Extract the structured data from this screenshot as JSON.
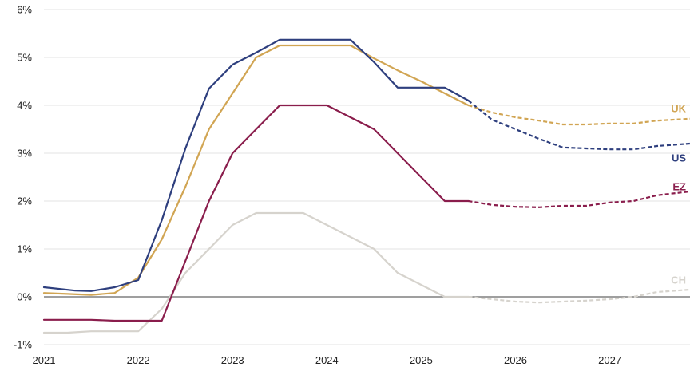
{
  "chart_data": {
    "type": "line",
    "x_ticks": [
      2021,
      2022,
      2023,
      2024,
      2025,
      2026,
      2027
    ],
    "x_tick_labels": [
      "2021",
      "2022",
      "2023",
      "2024",
      "2025",
      "2026",
      "2027"
    ],
    "y_ticks": [
      -1,
      0,
      1,
      2,
      3,
      4,
      5,
      6
    ],
    "y_tick_labels": [
      "-1%",
      "0%",
      "1%",
      "2%",
      "3%",
      "4%",
      "5%",
      "6%"
    ],
    "xlim": [
      2021,
      2027.85
    ],
    "ylim": [
      -1,
      6
    ],
    "grid": "horizontal",
    "zero_line": true,
    "series": [
      {
        "name": "US",
        "color": "#2e3f7e",
        "label_y": 2.9,
        "actual": [
          [
            2021.0,
            0.2
          ],
          [
            2021.33,
            0.13
          ],
          [
            2021.5,
            0.12
          ],
          [
            2021.75,
            0.2
          ],
          [
            2022.0,
            0.35
          ],
          [
            2022.25,
            1.6
          ],
          [
            2022.5,
            3.1
          ],
          [
            2022.75,
            4.35
          ],
          [
            2023.0,
            4.85
          ],
          [
            2023.25,
            5.1
          ],
          [
            2023.5,
            5.37
          ],
          [
            2023.75,
            5.37
          ],
          [
            2024.0,
            5.37
          ],
          [
            2024.25,
            5.37
          ],
          [
            2024.5,
            4.9
          ],
          [
            2024.75,
            4.37
          ],
          [
            2025.0,
            4.37
          ],
          [
            2025.25,
            4.37
          ],
          [
            2025.5,
            4.1
          ]
        ],
        "forecast": [
          [
            2025.5,
            4.1
          ],
          [
            2025.75,
            3.7
          ],
          [
            2026.0,
            3.5
          ],
          [
            2026.25,
            3.3
          ],
          [
            2026.5,
            3.12
          ],
          [
            2026.75,
            3.1
          ],
          [
            2027.0,
            3.08
          ],
          [
            2027.25,
            3.08
          ],
          [
            2027.5,
            3.15
          ],
          [
            2027.85,
            3.2
          ]
        ]
      },
      {
        "name": "UK",
        "color": "#d1a553",
        "label_y": 3.93,
        "actual": [
          [
            2021.0,
            0.08
          ],
          [
            2021.25,
            0.06
          ],
          [
            2021.5,
            0.04
          ],
          [
            2021.75,
            0.08
          ],
          [
            2022.0,
            0.4
          ],
          [
            2022.25,
            1.2
          ],
          [
            2022.5,
            2.3
          ],
          [
            2022.75,
            3.5
          ],
          [
            2023.0,
            4.25
          ],
          [
            2023.25,
            5.0
          ],
          [
            2023.5,
            5.25
          ],
          [
            2023.75,
            5.25
          ],
          [
            2024.0,
            5.25
          ],
          [
            2024.25,
            5.25
          ],
          [
            2024.5,
            4.98
          ],
          [
            2024.75,
            4.73
          ],
          [
            2025.0,
            4.5
          ],
          [
            2025.25,
            4.25
          ],
          [
            2025.5,
            4.0
          ]
        ],
        "forecast": [
          [
            2025.5,
            4.0
          ],
          [
            2025.75,
            3.85
          ],
          [
            2026.0,
            3.75
          ],
          [
            2026.25,
            3.68
          ],
          [
            2026.5,
            3.6
          ],
          [
            2026.75,
            3.6
          ],
          [
            2027.0,
            3.62
          ],
          [
            2027.25,
            3.62
          ],
          [
            2027.5,
            3.68
          ],
          [
            2027.85,
            3.72
          ]
        ]
      },
      {
        "name": "EZ",
        "color": "#8a1d4c",
        "label_y": 2.3,
        "actual": [
          [
            2021.0,
            -0.48
          ],
          [
            2021.5,
            -0.48
          ],
          [
            2021.75,
            -0.5
          ],
          [
            2022.0,
            -0.5
          ],
          [
            2022.25,
            -0.5
          ],
          [
            2022.5,
            0.75
          ],
          [
            2022.75,
            2.0
          ],
          [
            2023.0,
            3.0
          ],
          [
            2023.25,
            3.5
          ],
          [
            2023.5,
            4.0
          ],
          [
            2023.75,
            4.0
          ],
          [
            2024.0,
            4.0
          ],
          [
            2024.25,
            3.75
          ],
          [
            2024.5,
            3.5
          ],
          [
            2024.75,
            3.0
          ],
          [
            2025.0,
            2.5
          ],
          [
            2025.25,
            2.0
          ],
          [
            2025.5,
            2.0
          ]
        ],
        "forecast": [
          [
            2025.5,
            2.0
          ],
          [
            2025.75,
            1.92
          ],
          [
            2026.0,
            1.88
          ],
          [
            2026.25,
            1.87
          ],
          [
            2026.5,
            1.9
          ],
          [
            2026.75,
            1.9
          ],
          [
            2027.0,
            1.97
          ],
          [
            2027.25,
            2.0
          ],
          [
            2027.5,
            2.12
          ],
          [
            2027.85,
            2.2
          ]
        ]
      },
      {
        "name": "CH",
        "color": "#d6d3cd",
        "label_y": 0.35,
        "actual": [
          [
            2021.0,
            -0.75
          ],
          [
            2021.25,
            -0.75
          ],
          [
            2021.5,
            -0.72
          ],
          [
            2021.75,
            -0.72
          ],
          [
            2022.0,
            -0.72
          ],
          [
            2022.25,
            -0.25
          ],
          [
            2022.5,
            0.5
          ],
          [
            2022.75,
            1.0
          ],
          [
            2023.0,
            1.5
          ],
          [
            2023.25,
            1.75
          ],
          [
            2023.5,
            1.75
          ],
          [
            2023.75,
            1.75
          ],
          [
            2024.0,
            1.5
          ],
          [
            2024.25,
            1.25
          ],
          [
            2024.5,
            1.0
          ],
          [
            2024.75,
            0.5
          ],
          [
            2025.0,
            0.25
          ],
          [
            2025.25,
            0.0
          ],
          [
            2025.5,
            0.0
          ]
        ],
        "forecast": [
          [
            2025.5,
            0.0
          ],
          [
            2025.75,
            -0.05
          ],
          [
            2026.0,
            -0.1
          ],
          [
            2026.25,
            -0.12
          ],
          [
            2026.5,
            -0.1
          ],
          [
            2026.75,
            -0.08
          ],
          [
            2027.0,
            -0.05
          ],
          [
            2027.25,
            0.0
          ],
          [
            2027.5,
            0.1
          ],
          [
            2027.85,
            0.15
          ]
        ]
      }
    ]
  }
}
